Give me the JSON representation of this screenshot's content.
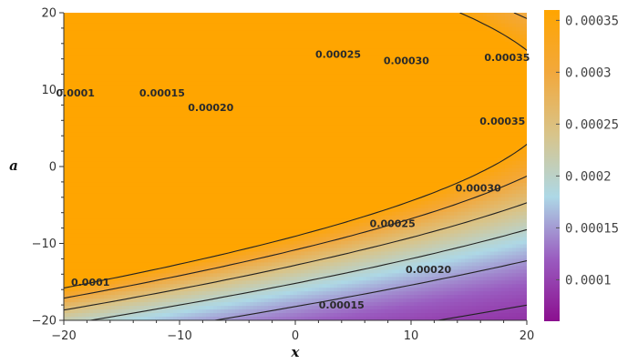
{
  "chart_data": {
    "type": "heatmap",
    "subtype": "contour",
    "xlabel": "x",
    "ylabel": "a",
    "xlim": [
      -20,
      20
    ],
    "ylim": [
      -20,
      20
    ],
    "x_ticks": [
      -20,
      -10,
      0,
      10,
      20
    ],
    "y_ticks": [
      -20,
      -10,
      0,
      10,
      20
    ],
    "x_tick_labels": [
      "−20",
      "−10",
      "0",
      "10",
      "20"
    ],
    "y_tick_labels": [
      "−20",
      "−10",
      "0",
      "10",
      "20"
    ],
    "value_range": [
      6e-05,
      0.00036
    ],
    "colorbar": {
      "ticks": [
        0.0001,
        0.00015,
        0.0002,
        0.00025,
        0.0003,
        0.00035
      ],
      "tick_labels": [
        "0.0001",
        "0.00015",
        "0.0002",
        "0.00025",
        "0.0003",
        "0.00035"
      ],
      "colors": [
        "#8b0f8f",
        "#9a5cc0",
        "#add8e6",
        "#d8c48a",
        "#f2a83c",
        "#ffa500"
      ]
    },
    "contour_levels": [
      0.0001,
      0.00015,
      0.0002,
      0.00025,
      0.0003,
      0.00035
    ],
    "contour_labels": [
      {
        "text": "0.0001",
        "x": -19.0,
        "a": 9.6
      },
      {
        "text": "0.0001",
        "x": -17.7,
        "a": -15.0
      },
      {
        "text": "0.00015",
        "x": -11.5,
        "a": 9.6
      },
      {
        "text": "0.00015",
        "x": 4.0,
        "a": -18.0
      },
      {
        "text": "0.00020",
        "x": -7.3,
        "a": 7.7
      },
      {
        "text": "0.00020",
        "x": 11.5,
        "a": -13.4
      },
      {
        "text": "0.00025",
        "x": 3.7,
        "a": 14.6
      },
      {
        "text": "0.00025",
        "x": 8.4,
        "a": -7.4
      },
      {
        "text": "0.00030",
        "x": 9.6,
        "a": 13.8
      },
      {
        "text": "0.00030",
        "x": 15.8,
        "a": -2.8
      },
      {
        "text": "0.00035",
        "x": 18.3,
        "a": 14.2
      },
      {
        "text": "0.00035",
        "x": 17.9,
        "a": 5.9
      }
    ],
    "grid": false,
    "legend": "colorbar-right"
  }
}
